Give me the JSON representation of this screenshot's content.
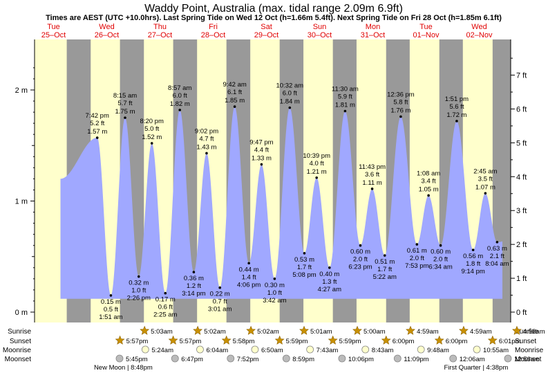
{
  "chart_data": {
    "type": "area",
    "title": "Waddy Point, Australia (max. tidal range 2.09m 6.9ft)",
    "subtitle": "Times are AEST (UTC +10.0hrs). Last Spring Tide on Wed 12 Oct (h=1.66m 5.4ft). Next Spring Tide on Fri 28 Oct (h=1.85m 6.1ft)",
    "days": [
      {
        "weekday": "Tue",
        "date": "25–Oct"
      },
      {
        "weekday": "Wed",
        "date": "26–Oct"
      },
      {
        "weekday": "Thu",
        "date": "27–Oct"
      },
      {
        "weekday": "Fri",
        "date": "28–Oct"
      },
      {
        "weekday": "Sat",
        "date": "29–Oct"
      },
      {
        "weekday": "Sun",
        "date": "30–Oct"
      },
      {
        "weekday": "Mon",
        "date": "31–Oct"
      },
      {
        "weekday": "Tue",
        "date": "01–Nov"
      },
      {
        "weekday": "Wed",
        "date": "02–Nov"
      }
    ],
    "y_left": {
      "unit": "m",
      "range": [
        0,
        2.4
      ],
      "ticks": [
        {
          "v": 0,
          "label": "0 m"
        },
        {
          "v": 1,
          "label": "1 m"
        },
        {
          "v": 2,
          "label": "2 m"
        }
      ]
    },
    "y_right": {
      "unit": "ft",
      "ticks": [
        "0 ft",
        "1 ft",
        "2 ft",
        "3 ft",
        "4 ft",
        "5 ft",
        "6 ft",
        "7 ft"
      ]
    },
    "x_range_days": [
      -0.45,
      8.6
    ],
    "daylight": [
      [
        0.198,
        0.748
      ],
      [
        1.198,
        1.748
      ],
      [
        2.197,
        2.749
      ],
      [
        3.197,
        3.749
      ],
      [
        4.196,
        4.749
      ],
      [
        5.194,
        5.75
      ],
      [
        6.193,
        6.75
      ],
      [
        7.192,
        7.751
      ],
      [
        8.191,
        8.75
      ]
    ],
    "series_start": {
      "t": -0.37,
      "h": 1.2
    },
    "series_end": {
      "t": 8.57,
      "h": 0.78
    },
    "extremes": [
      {
        "t": 0.321,
        "h": 1.57,
        "type": "high",
        "time": "7:42 pm",
        "ft": "5.2 ft",
        "m": "1.57 m"
      },
      {
        "t": 0.577,
        "h": 0.15,
        "type": "low",
        "time": "1:51 am",
        "ft": "0.5 ft",
        "m": "0.15 m"
      },
      {
        "t": 0.844,
        "h": 1.75,
        "type": "high",
        "time": "8:15 am",
        "ft": "5.7 ft",
        "m": "1.75 m"
      },
      {
        "t": 1.101,
        "h": 0.32,
        "type": "low",
        "time": "2:26 pm",
        "ft": "1.0 ft",
        "m": "0.32 m"
      },
      {
        "t": 1.347,
        "h": 1.52,
        "type": "high",
        "time": "8:20 pm",
        "ft": "5.0 ft",
        "m": "1.52 m"
      },
      {
        "t": 1.601,
        "h": 0.17,
        "type": "low",
        "time": "2:25 am",
        "ft": "0.6 ft",
        "m": "0.17 m"
      },
      {
        "t": 1.873,
        "h": 1.82,
        "type": "high",
        "time": "8:57 am",
        "ft": "6.0 ft",
        "m": "1.82 m"
      },
      {
        "t": 2.135,
        "h": 0.36,
        "type": "low",
        "time": "3:14 pm",
        "ft": "1.2 ft",
        "m": "0.36 m"
      },
      {
        "t": 2.376,
        "h": 1.43,
        "type": "high",
        "time": "9:02 pm",
        "ft": "4.7 ft",
        "m": "1.43 m"
      },
      {
        "t": 2.626,
        "h": 0.22,
        "type": "low",
        "time": "3:01 am",
        "ft": "0.7 ft",
        "m": "0.22 m"
      },
      {
        "t": 2.904,
        "h": 1.85,
        "type": "high",
        "time": "9:42 am",
        "ft": "6.1 ft",
        "m": "1.85 m"
      },
      {
        "t": 3.171,
        "h": 0.44,
        "type": "low",
        "time": "4:06 pm",
        "ft": "1.4 ft",
        "m": "0.44 m"
      },
      {
        "t": 3.408,
        "h": 1.33,
        "type": "high",
        "time": "9:47 pm",
        "ft": "4.4 ft",
        "m": "1.33 m"
      },
      {
        "t": 3.654,
        "h": 0.3,
        "type": "low",
        "time": "3:42 am",
        "ft": "1.0 ft",
        "m": "0.30 m"
      },
      {
        "t": 3.939,
        "h": 1.84,
        "type": "high",
        "time": "10:32 am",
        "ft": "6.0 ft",
        "m": "1.84 m"
      },
      {
        "t": 4.214,
        "h": 0.53,
        "type": "low",
        "time": "5:08 pm",
        "ft": "1.7 ft",
        "m": "0.53 m"
      },
      {
        "t": 4.444,
        "h": 1.21,
        "type": "high",
        "time": "10:39 pm",
        "ft": "4.0 ft",
        "m": "1.21 m"
      },
      {
        "t": 4.686,
        "h": 0.4,
        "type": "low",
        "time": "4:27 am",
        "ft": "1.3 ft",
        "m": "0.40 m"
      },
      {
        "t": 4.979,
        "h": 1.81,
        "type": "high",
        "time": "11:30 am",
        "ft": "5.9 ft",
        "m": "1.81 m"
      },
      {
        "t": 5.266,
        "h": 0.6,
        "type": "low",
        "time": "6:23 pm",
        "ft": "2.0 ft",
        "m": "0.60 m"
      },
      {
        "t": 5.488,
        "h": 1.11,
        "type": "high",
        "time": "11:43 pm",
        "ft": "3.6 ft",
        "m": "1.11 m"
      },
      {
        "t": 5.724,
        "h": 0.51,
        "type": "low",
        "time": "5:22 am",
        "ft": "1.7 ft",
        "m": "0.51 m"
      },
      {
        "t": 6.025,
        "h": 1.76,
        "type": "high",
        "time": "12:36 pm",
        "ft": "5.8 ft",
        "m": "1.76 m"
      },
      {
        "t": 6.329,
        "h": 0.61,
        "type": "low",
        "time": "7:53 pm",
        "ft": "2.0 ft",
        "m": "0.61 m"
      },
      {
        "t": 6.547,
        "h": 1.05,
        "type": "high",
        "time": "1:08 am",
        "ft": "3.4 ft",
        "m": "1.05 m"
      },
      {
        "t": 6.774,
        "h": 0.6,
        "type": "low",
        "time": "6:34 am",
        "ft": "2.0 ft",
        "m": "0.60 m"
      },
      {
        "t": 7.077,
        "h": 1.72,
        "type": "high",
        "time": "1:51 pm",
        "ft": "5.6 ft",
        "m": "1.72 m"
      },
      {
        "t": 7.385,
        "h": 0.56,
        "type": "low",
        "time": "9:14 pm",
        "ft": "1.8 ft",
        "m": "0.56 m"
      },
      {
        "t": 7.615,
        "h": 1.07,
        "type": "high",
        "time": "2:45 am",
        "ft": "3.5 ft",
        "m": "1.07 m"
      },
      {
        "t": 7.836,
        "h": 0.63,
        "type": "low",
        "time": "8:04 am",
        "ft": "2.1 ft",
        "m": "0.63 m"
      }
    ],
    "rows": {
      "labels": [
        "Sunrise",
        "Sunset",
        "Moonrise",
        "Moonset"
      ],
      "sunrise": [
        {
          "t": 1.21,
          "time": "5:03am"
        },
        {
          "t": 2.209,
          "time": "5:02am"
        },
        {
          "t": 3.209,
          "time": "5:02am"
        },
        {
          "t": 4.208,
          "time": "5:01am"
        },
        {
          "t": 5.208,
          "time": "5:00am"
        },
        {
          "t": 6.208,
          "time": "4:59am"
        },
        {
          "t": 7.207,
          "time": "4:59am"
        },
        {
          "t": 8.207,
          "time": "4:58am"
        }
      ],
      "sunset": [
        {
          "t": 0.748,
          "time": "5:57pm"
        },
        {
          "t": 1.748,
          "time": "5:57pm"
        },
        {
          "t": 2.749,
          "time": "5:58pm"
        },
        {
          "t": 3.749,
          "time": "5:59pm"
        },
        {
          "t": 4.749,
          "time": "5:59pm"
        },
        {
          "t": 5.75,
          "time": "6:00pm"
        },
        {
          "t": 6.75,
          "time": "6:00pm"
        },
        {
          "t": 7.751,
          "time": "6:01pm"
        }
      ],
      "moonrise": [
        {
          "t": 1.225,
          "time": "5:24am"
        },
        {
          "t": 2.253,
          "time": "6:04am"
        },
        {
          "t": 3.285,
          "time": "6:50am"
        },
        {
          "t": 4.32,
          "time": "7:43am"
        },
        {
          "t": 5.36,
          "time": "8:43am"
        },
        {
          "t": 6.405,
          "time": "9:48am"
        },
        {
          "t": 7.455,
          "time": "10:55am"
        }
      ],
      "moonset": [
        {
          "t": 0.74,
          "time": "5:45pm"
        },
        {
          "t": 1.783,
          "time": "6:47pm"
        },
        {
          "t": 2.828,
          "time": "7:52pm"
        },
        {
          "t": 3.874,
          "time": "8:59pm"
        },
        {
          "t": 4.921,
          "time": "10:06pm"
        },
        {
          "t": 5.965,
          "time": "11:09pm"
        },
        {
          "t": 7.009,
          "time": "12:06am"
        },
        {
          "t": 8.039,
          "time": "12:56am"
        }
      ],
      "phases": [
        {
          "t": 0.81,
          "text": "New Moon | 8:48pm"
        },
        {
          "t": 7.44,
          "text": "First Quarter | 4:38pm"
        }
      ]
    },
    "colors": {
      "day": "#ffffcc",
      "night": "#999999",
      "water": "#a0a8ff",
      "day_label": "#e00000",
      "axis_bg": "#ffffff",
      "sun": "#c89000",
      "moon_rise": "#ffffcc",
      "moon_set": "#bbbbbb"
    }
  }
}
